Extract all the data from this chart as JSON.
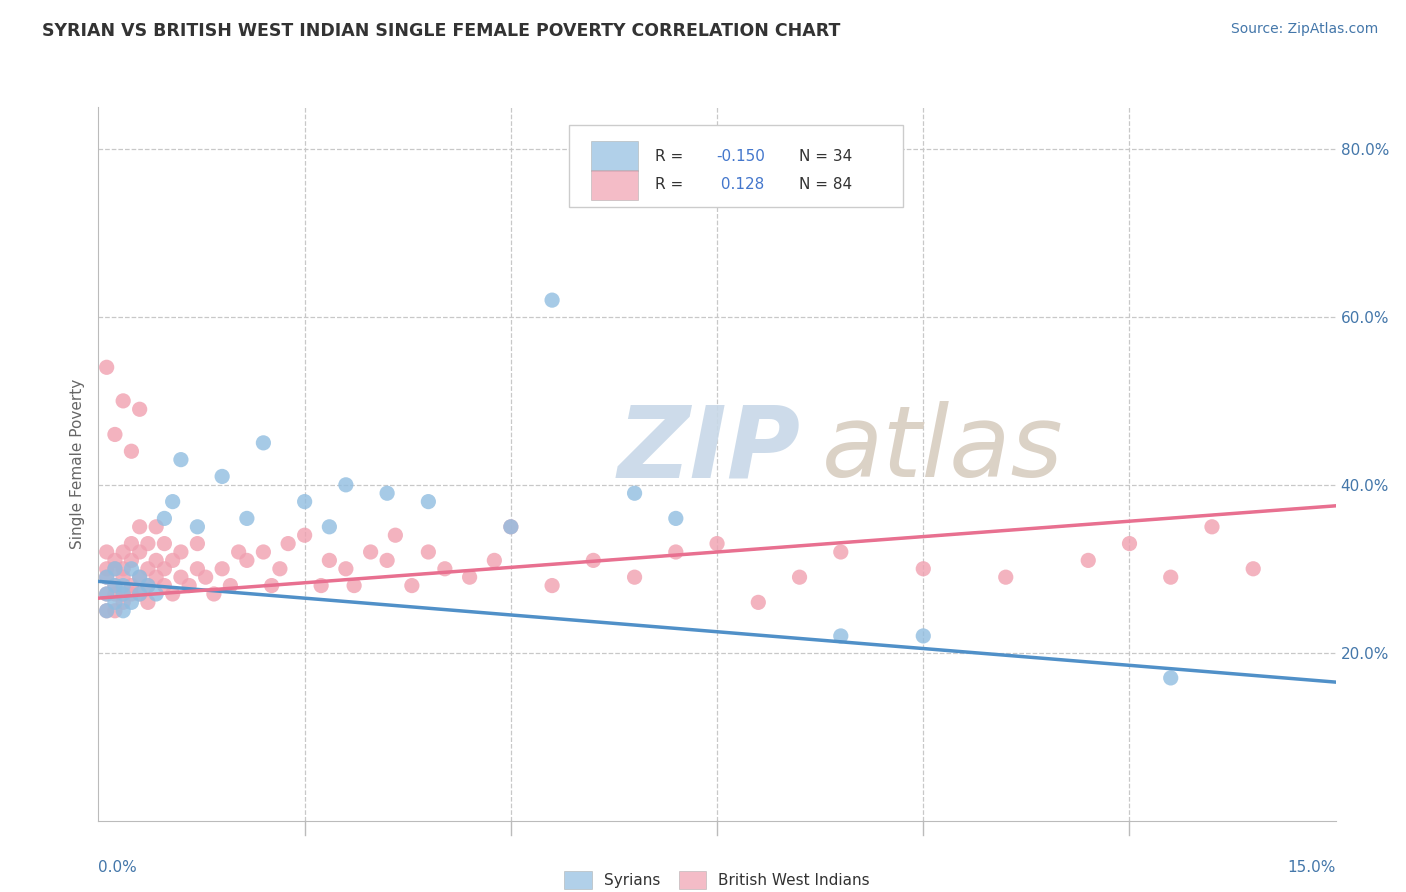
{
  "title": "SYRIAN VS BRITISH WEST INDIAN SINGLE FEMALE POVERTY CORRELATION CHART",
  "source": "Source: ZipAtlas.com",
  "ylabel": "Single Female Poverty",
  "xmin": 0.0,
  "xmax": 0.15,
  "ymin": 0.0,
  "ymax": 0.85,
  "y_tick_vals": [
    0.2,
    0.4,
    0.6,
    0.8
  ],
  "y_tick_labels": [
    "20.0%",
    "40.0%",
    "60.0%",
    "80.0%"
  ],
  "syrian_color": "#90bde0",
  "bwi_color": "#f0a0b0",
  "syrian_line_color": "#5090c8",
  "bwi_line_color": "#e87090",
  "background_color": "#ffffff",
  "grid_color": "#c8c8c8",
  "title_color": "#333333",
  "source_color": "#4477aa",
  "tick_label_color": "#4477aa",
  "ylabel_color": "#666666",
  "watermark_zip_color": "#c8d8e8",
  "watermark_atlas_color": "#d8cdc0",
  "legend_edge_color": "#cccccc",
  "legend_r_color": "#4477cc",
  "legend_text_color": "#333333",
  "syrians_r": -0.15,
  "syrians_n": 34,
  "bwi_r": 0.128,
  "bwi_n": 84,
  "syr_trendline": [
    0.285,
    0.165
  ],
  "bwi_trendline": [
    0.265,
    0.375
  ],
  "syrians_x": [
    0.001,
    0.001,
    0.001,
    0.002,
    0.002,
    0.002,
    0.003,
    0.003,
    0.003,
    0.004,
    0.004,
    0.005,
    0.005,
    0.006,
    0.007,
    0.008,
    0.009,
    0.01,
    0.012,
    0.015,
    0.018,
    0.02,
    0.025,
    0.028,
    0.03,
    0.035,
    0.04,
    0.05,
    0.055,
    0.065,
    0.07,
    0.09,
    0.1,
    0.13
  ],
  "syrians_y": [
    0.27,
    0.29,
    0.25,
    0.28,
    0.26,
    0.3,
    0.27,
    0.25,
    0.28,
    0.26,
    0.3,
    0.27,
    0.29,
    0.28,
    0.27,
    0.36,
    0.38,
    0.43,
    0.35,
    0.41,
    0.36,
    0.45,
    0.38,
    0.35,
    0.4,
    0.39,
    0.38,
    0.35,
    0.62,
    0.39,
    0.36,
    0.22,
    0.22,
    0.17
  ],
  "bwi_x": [
    0.001,
    0.001,
    0.001,
    0.001,
    0.001,
    0.002,
    0.002,
    0.002,
    0.002,
    0.002,
    0.003,
    0.003,
    0.003,
    0.003,
    0.003,
    0.004,
    0.004,
    0.004,
    0.004,
    0.005,
    0.005,
    0.005,
    0.005,
    0.006,
    0.006,
    0.006,
    0.006,
    0.007,
    0.007,
    0.007,
    0.008,
    0.008,
    0.008,
    0.009,
    0.009,
    0.01,
    0.01,
    0.011,
    0.012,
    0.012,
    0.013,
    0.014,
    0.015,
    0.016,
    0.017,
    0.018,
    0.02,
    0.021,
    0.022,
    0.023,
    0.025,
    0.027,
    0.028,
    0.03,
    0.031,
    0.033,
    0.035,
    0.036,
    0.038,
    0.04,
    0.042,
    0.045,
    0.048,
    0.05,
    0.055,
    0.06,
    0.065,
    0.07,
    0.075,
    0.08,
    0.085,
    0.09,
    0.1,
    0.11,
    0.12,
    0.125,
    0.13,
    0.135,
    0.14,
    0.001,
    0.002,
    0.003,
    0.004,
    0.005
  ],
  "bwi_y": [
    0.27,
    0.3,
    0.25,
    0.29,
    0.32,
    0.27,
    0.3,
    0.25,
    0.28,
    0.31,
    0.27,
    0.29,
    0.32,
    0.26,
    0.3,
    0.28,
    0.31,
    0.27,
    0.33,
    0.27,
    0.29,
    0.32,
    0.35,
    0.28,
    0.3,
    0.33,
    0.26,
    0.29,
    0.31,
    0.35,
    0.28,
    0.3,
    0.33,
    0.27,
    0.31,
    0.29,
    0.32,
    0.28,
    0.3,
    0.33,
    0.29,
    0.27,
    0.3,
    0.28,
    0.32,
    0.31,
    0.32,
    0.28,
    0.3,
    0.33,
    0.34,
    0.28,
    0.31,
    0.3,
    0.28,
    0.32,
    0.31,
    0.34,
    0.28,
    0.32,
    0.3,
    0.29,
    0.31,
    0.35,
    0.28,
    0.31,
    0.29,
    0.32,
    0.33,
    0.26,
    0.29,
    0.32,
    0.3,
    0.29,
    0.31,
    0.33,
    0.29,
    0.35,
    0.3,
    0.54,
    0.46,
    0.5,
    0.44,
    0.49
  ]
}
